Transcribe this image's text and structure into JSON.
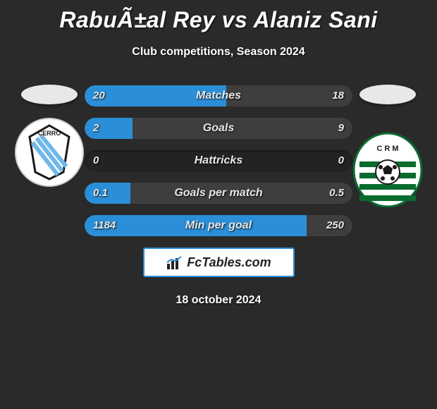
{
  "title": "RabuÃ±al Rey vs Alaniz Sani",
  "subtitle": "Club competitions, Season 2024",
  "date": "18 october 2024",
  "footer": "FcTables.com",
  "left_player": {
    "oval_color": "#e8e8e8",
    "team_name": "Cerro",
    "badge": {
      "bg": "#ffffff",
      "accent1": "#6fb8e8",
      "accent2": "#1a1a1a"
    }
  },
  "right_player": {
    "oval_color": "#e8e8e8",
    "team_name": "Racing CM",
    "badge": {
      "bg": "#ffffff",
      "accent1": "#0a6b2e",
      "ball": "#1a1a1a"
    }
  },
  "bar_colors": {
    "left": "#2a8fd8",
    "right": "#3e3e3e",
    "track": "#232323"
  },
  "stats": [
    {
      "label": "Matches",
      "left_val": "20",
      "right_val": "18",
      "left_pct": 53,
      "right_pct": 47
    },
    {
      "label": "Goals",
      "left_val": "2",
      "right_val": "9",
      "left_pct": 18,
      "right_pct": 82
    },
    {
      "label": "Hattricks",
      "left_val": "0",
      "right_val": "0",
      "left_pct": 0,
      "right_pct": 0
    },
    {
      "label": "Goals per match",
      "left_val": "0.1",
      "right_val": "0.5",
      "left_pct": 17,
      "right_pct": 83
    },
    {
      "label": "Min per goal",
      "left_val": "1184",
      "right_val": "250",
      "left_pct": 83,
      "right_pct": 17
    }
  ]
}
